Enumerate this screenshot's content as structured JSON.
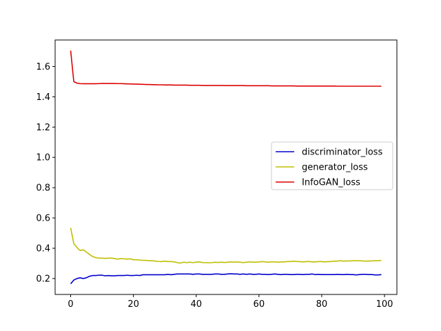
{
  "chart_data": {
    "type": "line",
    "title": "",
    "xlabel": "",
    "ylabel": "",
    "xlim": [
      -4.95,
      103.95
    ],
    "ylim": [
      0.095,
      1.775
    ],
    "xticks": [
      0,
      20,
      40,
      60,
      80,
      100
    ],
    "yticks": [
      0.2,
      0.4,
      0.6,
      0.8,
      1.0,
      1.2,
      1.4,
      1.6
    ],
    "xtick_labels": [
      "0",
      "20",
      "40",
      "60",
      "80",
      "100"
    ],
    "ytick_labels": [
      "0.2",
      "0.4",
      "0.6",
      "0.8",
      "1.0",
      "1.2",
      "1.4",
      "1.6"
    ],
    "grid": false,
    "legend_position": "center-right",
    "series": [
      {
        "name": "discriminator_loss",
        "color": "#0000cc",
        "values": [
          0.165,
          0.19,
          0.2,
          0.205,
          0.2,
          0.205,
          0.215,
          0.22,
          0.22,
          0.222,
          0.222,
          0.218,
          0.22,
          0.218,
          0.218,
          0.22,
          0.22,
          0.22,
          0.222,
          0.22,
          0.22,
          0.222,
          0.22,
          0.225,
          0.225,
          0.225,
          0.225,
          0.225,
          0.225,
          0.225,
          0.225,
          0.228,
          0.225,
          0.228,
          0.23,
          0.23,
          0.23,
          0.23,
          0.23,
          0.228,
          0.23,
          0.23,
          0.228,
          0.228,
          0.228,
          0.228,
          0.23,
          0.23,
          0.228,
          0.228,
          0.23,
          0.232,
          0.23,
          0.23,
          0.228,
          0.23,
          0.228,
          0.23,
          0.228,
          0.228,
          0.23,
          0.228,
          0.228,
          0.226,
          0.228,
          0.23,
          0.228,
          0.226,
          0.228,
          0.228,
          0.226,
          0.226,
          0.228,
          0.228,
          0.226,
          0.228,
          0.228,
          0.23,
          0.226,
          0.228,
          0.226,
          0.226,
          0.226,
          0.226,
          0.226,
          0.228,
          0.226,
          0.226,
          0.228,
          0.226,
          0.226,
          0.224,
          0.226,
          0.228,
          0.228,
          0.226,
          0.226,
          0.224,
          0.224,
          0.226
        ]
      },
      {
        "name": "generator_loss",
        "color": "#bfbf00",
        "values": [
          0.535,
          0.43,
          0.405,
          0.385,
          0.39,
          0.375,
          0.36,
          0.345,
          0.338,
          0.335,
          0.335,
          0.333,
          0.335,
          0.335,
          0.332,
          0.328,
          0.332,
          0.33,
          0.328,
          0.33,
          0.324,
          0.324,
          0.322,
          0.32,
          0.32,
          0.318,
          0.318,
          0.315,
          0.313,
          0.312,
          0.315,
          0.312,
          0.312,
          0.31,
          0.305,
          0.302,
          0.308,
          0.305,
          0.308,
          0.305,
          0.308,
          0.31,
          0.306,
          0.305,
          0.304,
          0.305,
          0.308,
          0.306,
          0.308,
          0.306,
          0.308,
          0.31,
          0.308,
          0.31,
          0.308,
          0.305,
          0.308,
          0.31,
          0.308,
          0.308,
          0.31,
          0.312,
          0.31,
          0.308,
          0.31,
          0.31,
          0.308,
          0.31,
          0.31,
          0.312,
          0.312,
          0.315,
          0.312,
          0.312,
          0.31,
          0.312,
          0.312,
          0.31,
          0.31,
          0.312,
          0.312,
          0.31,
          0.312,
          0.312,
          0.315,
          0.315,
          0.318,
          0.315,
          0.316,
          0.316,
          0.318,
          0.318,
          0.318,
          0.316,
          0.315,
          0.316,
          0.316,
          0.318,
          0.318,
          0.32
        ]
      },
      {
        "name": "InfoGAN_loss",
        "color": "#dd0000",
        "values": [
          1.705,
          1.5,
          1.49,
          1.487,
          1.486,
          1.486,
          1.486,
          1.486,
          1.486,
          1.487,
          1.488,
          1.488,
          1.488,
          1.488,
          1.488,
          1.487,
          1.487,
          1.486,
          1.485,
          1.485,
          1.484,
          1.484,
          1.483,
          1.482,
          1.481,
          1.481,
          1.48,
          1.48,
          1.479,
          1.479,
          1.478,
          1.478,
          1.478,
          1.477,
          1.477,
          1.477,
          1.477,
          1.477,
          1.476,
          1.476,
          1.476,
          1.476,
          1.475,
          1.475,
          1.475,
          1.475,
          1.475,
          1.475,
          1.475,
          1.474,
          1.474,
          1.474,
          1.474,
          1.474,
          1.474,
          1.474,
          1.473,
          1.473,
          1.473,
          1.473,
          1.473,
          1.473,
          1.473,
          1.473,
          1.472,
          1.472,
          1.472,
          1.472,
          1.472,
          1.472,
          1.472,
          1.472,
          1.471,
          1.471,
          1.471,
          1.471,
          1.471,
          1.471,
          1.471,
          1.471,
          1.471,
          1.471,
          1.471,
          1.471,
          1.471,
          1.47,
          1.47,
          1.47,
          1.47,
          1.47,
          1.47,
          1.47,
          1.47,
          1.47,
          1.47,
          1.47,
          1.47,
          1.47,
          1.47,
          1.47
        ]
      }
    ]
  }
}
